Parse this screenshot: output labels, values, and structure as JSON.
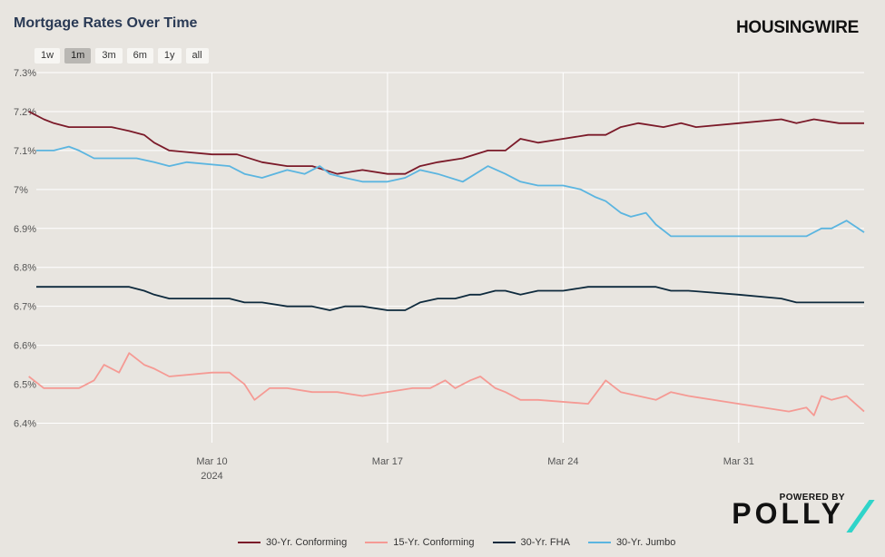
{
  "header": {
    "title": "Mortgage Rates Over Time",
    "brand": "HOUSINGWIRE"
  },
  "range_buttons": [
    "1w",
    "1m",
    "3m",
    "6m",
    "1y",
    "all"
  ],
  "active_range": "1m",
  "footer": {
    "powered_by": "POWERED BY",
    "logo": "POLLY"
  },
  "colors": {
    "conforming30": "#7b1a29",
    "conforming15": "#f59a94",
    "fha30": "#0e2a3d",
    "jumbo30": "#5bb5e0",
    "accent": "#2fd4c9"
  },
  "chart_data": {
    "type": "line",
    "title": "Mortgage Rates Over Time",
    "xlabel": "",
    "ylabel": "",
    "x_range": [
      "2024-03-03",
      "2024-04-05"
    ],
    "ylim": [
      6.35,
      7.3
    ],
    "yticks": [
      "6.4%",
      "6.5%",
      "6.6%",
      "6.7%",
      "6.8%",
      "6.9%",
      "7%",
      "7.1%",
      "7.2%",
      "7.3%"
    ],
    "xticks": [
      {
        "date": "2024-03-10",
        "label": "Mar 10",
        "sublabel": "2024"
      },
      {
        "date": "2024-03-17",
        "label": "Mar 17",
        "sublabel": ""
      },
      {
        "date": "2024-03-24",
        "label": "Mar 24",
        "sublabel": ""
      },
      {
        "date": "2024-03-31",
        "label": "Mar 31",
        "sublabel": ""
      }
    ],
    "grid": true,
    "legend_position": "bottom",
    "series": [
      {
        "name": "30-Yr. Conforming",
        "color_key": "conforming30",
        "points": [
          [
            "2024-03-03",
            7.2
          ],
          [
            "2024-03-03",
            7.18
          ],
          [
            "2024-03-04",
            7.17
          ],
          [
            "2024-03-04",
            7.16
          ],
          [
            "2024-03-05",
            7.16
          ],
          [
            "2024-03-06",
            7.16
          ],
          [
            "2024-03-07",
            7.15
          ],
          [
            "2024-03-07",
            7.14
          ],
          [
            "2024-03-08",
            7.12
          ],
          [
            "2024-03-08",
            7.1
          ],
          [
            "2024-03-10",
            7.09
          ],
          [
            "2024-03-11",
            7.09
          ],
          [
            "2024-03-12",
            7.07
          ],
          [
            "2024-03-13",
            7.06
          ],
          [
            "2024-03-14",
            7.06
          ],
          [
            "2024-03-15",
            7.04
          ],
          [
            "2024-03-16",
            7.05
          ],
          [
            "2024-03-17",
            7.04
          ],
          [
            "2024-03-18",
            7.04
          ],
          [
            "2024-03-18",
            7.06
          ],
          [
            "2024-03-19",
            7.07
          ],
          [
            "2024-03-20",
            7.08
          ],
          [
            "2024-03-21",
            7.1
          ],
          [
            "2024-03-22",
            7.1
          ],
          [
            "2024-03-22",
            7.13
          ],
          [
            "2024-03-23",
            7.12
          ],
          [
            "2024-03-24",
            7.13
          ],
          [
            "2024-03-25",
            7.14
          ],
          [
            "2024-03-26",
            7.14
          ],
          [
            "2024-03-26",
            7.16
          ],
          [
            "2024-03-27",
            7.17
          ],
          [
            "2024-03-28",
            7.16
          ],
          [
            "2024-03-29",
            7.17
          ],
          [
            "2024-03-29",
            7.16
          ],
          [
            "2024-03-31",
            7.17
          ],
          [
            "2024-04-02",
            7.18
          ],
          [
            "2024-04-02",
            7.17
          ],
          [
            "2024-04-03",
            7.18
          ],
          [
            "2024-04-04",
            7.17
          ],
          [
            "2024-04-05",
            7.17
          ]
        ]
      },
      {
        "name": "15-Yr. Conforming",
        "color_key": "conforming15",
        "points": [
          [
            "2024-03-03",
            6.52
          ],
          [
            "2024-03-03",
            6.49
          ],
          [
            "2024-03-04",
            6.49
          ],
          [
            "2024-03-05",
            6.49
          ],
          [
            "2024-03-05",
            6.51
          ],
          [
            "2024-03-06",
            6.55
          ],
          [
            "2024-03-06",
            6.53
          ],
          [
            "2024-03-07",
            6.58
          ],
          [
            "2024-03-07",
            6.55
          ],
          [
            "2024-03-08",
            6.54
          ],
          [
            "2024-03-08",
            6.52
          ],
          [
            "2024-03-10",
            6.53
          ],
          [
            "2024-03-11",
            6.53
          ],
          [
            "2024-03-11",
            6.5
          ],
          [
            "2024-03-12",
            6.46
          ],
          [
            "2024-03-12",
            6.49
          ],
          [
            "2024-03-13",
            6.49
          ],
          [
            "2024-03-14",
            6.48
          ],
          [
            "2024-03-15",
            6.48
          ],
          [
            "2024-03-16",
            6.47
          ],
          [
            "2024-03-18",
            6.49
          ],
          [
            "2024-03-19",
            6.49
          ],
          [
            "2024-03-19",
            6.51
          ],
          [
            "2024-03-20",
            6.49
          ],
          [
            "2024-03-20",
            6.51
          ],
          [
            "2024-03-21",
            6.52
          ],
          [
            "2024-03-21",
            6.49
          ],
          [
            "2024-03-22",
            6.48
          ],
          [
            "2024-03-22",
            6.46
          ],
          [
            "2024-03-23",
            6.46
          ],
          [
            "2024-03-25",
            6.45
          ],
          [
            "2024-03-26",
            6.51
          ],
          [
            "2024-03-26",
            6.48
          ],
          [
            "2024-03-27",
            6.47
          ],
          [
            "2024-03-28",
            6.46
          ],
          [
            "2024-03-28",
            6.48
          ],
          [
            "2024-03-29",
            6.47
          ],
          [
            "2024-03-31",
            6.45
          ],
          [
            "2024-04-02",
            6.43
          ],
          [
            "2024-04-03",
            6.44
          ],
          [
            "2024-04-03",
            6.42
          ],
          [
            "2024-04-03",
            6.47
          ],
          [
            "2024-04-04",
            6.46
          ],
          [
            "2024-04-04",
            6.47
          ],
          [
            "2024-04-05",
            6.43
          ]
        ]
      },
      {
        "name": "30-Yr. FHA",
        "color_key": "fha30",
        "points": [
          [
            "2024-03-03",
            6.75
          ],
          [
            "2024-03-06",
            6.75
          ],
          [
            "2024-03-07",
            6.75
          ],
          [
            "2024-03-07",
            6.74
          ],
          [
            "2024-03-08",
            6.73
          ],
          [
            "2024-03-08",
            6.72
          ],
          [
            "2024-03-10",
            6.72
          ],
          [
            "2024-03-11",
            6.72
          ],
          [
            "2024-03-11",
            6.71
          ],
          [
            "2024-03-12",
            6.71
          ],
          [
            "2024-03-13",
            6.7
          ],
          [
            "2024-03-14",
            6.7
          ],
          [
            "2024-03-15",
            6.69
          ],
          [
            "2024-03-15",
            6.7
          ],
          [
            "2024-03-16",
            6.7
          ],
          [
            "2024-03-17",
            6.69
          ],
          [
            "2024-03-18",
            6.69
          ],
          [
            "2024-03-18",
            6.71
          ],
          [
            "2024-03-19",
            6.72
          ],
          [
            "2024-03-20",
            6.72
          ],
          [
            "2024-03-20",
            6.73
          ],
          [
            "2024-03-21",
            6.73
          ],
          [
            "2024-03-21",
            6.74
          ],
          [
            "2024-03-22",
            6.74
          ],
          [
            "2024-03-22",
            6.73
          ],
          [
            "2024-03-23",
            6.74
          ],
          [
            "2024-03-24",
            6.74
          ],
          [
            "2024-03-25",
            6.75
          ],
          [
            "2024-03-26",
            6.75
          ],
          [
            "2024-03-27",
            6.75
          ],
          [
            "2024-03-28",
            6.75
          ],
          [
            "2024-03-28",
            6.74
          ],
          [
            "2024-03-29",
            6.74
          ],
          [
            "2024-03-31",
            6.73
          ],
          [
            "2024-04-02",
            6.72
          ],
          [
            "2024-04-02",
            6.71
          ],
          [
            "2024-04-04",
            6.71
          ],
          [
            "2024-04-05",
            6.71
          ]
        ]
      },
      {
        "name": "30-Yr. Jumbo",
        "color_key": "jumbo30",
        "points": [
          [
            "2024-03-03",
            7.1
          ],
          [
            "2024-03-04",
            7.1
          ],
          [
            "2024-03-04",
            7.11
          ],
          [
            "2024-03-05",
            7.1
          ],
          [
            "2024-03-05",
            7.08
          ],
          [
            "2024-03-07",
            7.08
          ],
          [
            "2024-03-08",
            7.07
          ],
          [
            "2024-03-08",
            7.06
          ],
          [
            "2024-03-09",
            7.07
          ],
          [
            "2024-03-11",
            7.06
          ],
          [
            "2024-03-11",
            7.04
          ],
          [
            "2024-03-12",
            7.03
          ],
          [
            "2024-03-13",
            7.05
          ],
          [
            "2024-03-14",
            7.04
          ],
          [
            "2024-03-14",
            7.06
          ],
          [
            "2024-03-15",
            7.04
          ],
          [
            "2024-03-15",
            7.03
          ],
          [
            "2024-03-16",
            7.02
          ],
          [
            "2024-03-17",
            7.02
          ],
          [
            "2024-03-18",
            7.03
          ],
          [
            "2024-03-18",
            7.05
          ],
          [
            "2024-03-19",
            7.04
          ],
          [
            "2024-03-20",
            7.02
          ],
          [
            "2024-03-21",
            7.06
          ],
          [
            "2024-03-22",
            7.04
          ],
          [
            "2024-03-22",
            7.02
          ],
          [
            "2024-03-23",
            7.01
          ],
          [
            "2024-03-24",
            7.01
          ],
          [
            "2024-03-25",
            7.0
          ],
          [
            "2024-03-25",
            6.98
          ],
          [
            "2024-03-26",
            6.97
          ],
          [
            "2024-03-26",
            6.94
          ],
          [
            "2024-03-27",
            6.93
          ],
          [
            "2024-03-27",
            6.94
          ],
          [
            "2024-03-28",
            6.91
          ],
          [
            "2024-03-28",
            6.88
          ],
          [
            "2024-03-31",
            6.88
          ],
          [
            "2024-04-02",
            6.88
          ],
          [
            "2024-04-03",
            6.88
          ],
          [
            "2024-04-03",
            6.9
          ],
          [
            "2024-04-04",
            6.9
          ],
          [
            "2024-04-04",
            6.92
          ],
          [
            "2024-04-05",
            6.89
          ]
        ]
      }
    ]
  }
}
